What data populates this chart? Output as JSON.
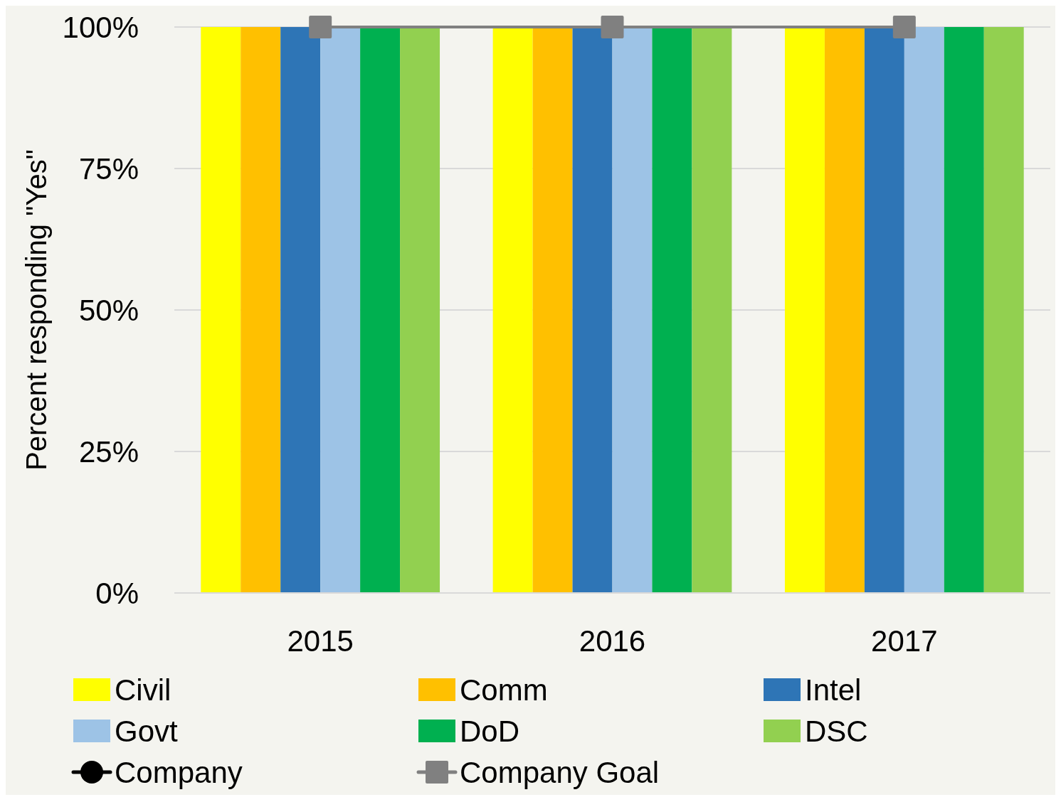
{
  "chart_data": {
    "type": "bar",
    "ylabel": "Percent responding \"Yes\"",
    "categories": [
      "2015",
      "2016",
      "2017"
    ],
    "series": [
      {
        "name": "Civil",
        "color": "#ffff00",
        "values": [
          100,
          100,
          100
        ]
      },
      {
        "name": "Comm",
        "color": "#ffc000",
        "values": [
          100,
          100,
          100
        ]
      },
      {
        "name": "Intel",
        "color": "#2e75b6",
        "values": [
          100,
          100,
          100
        ]
      },
      {
        "name": "Govt",
        "color": "#9dc3e6",
        "values": [
          100,
          100,
          100
        ]
      },
      {
        "name": "DoD",
        "color": "#00b050",
        "values": [
          100,
          100,
          100
        ]
      },
      {
        "name": "DSC",
        "color": "#92d050",
        "values": [
          100,
          100,
          100
        ]
      },
      {
        "name": "Company",
        "type": "line",
        "color": "#000000",
        "marker": "circle",
        "values": [
          null,
          null,
          null
        ]
      },
      {
        "name": "Company Goal",
        "type": "line",
        "color": "#808080",
        "marker": "square",
        "values": [
          100,
          100,
          100
        ]
      }
    ],
    "ylim": [
      0,
      100
    ],
    "yticks": [
      {
        "value": 0,
        "label": "0%"
      },
      {
        "value": 25,
        "label": "25%"
      },
      {
        "value": 50,
        "label": "50%"
      },
      {
        "value": 75,
        "label": "75%"
      },
      {
        "value": 100,
        "label": "100%"
      }
    ],
    "grid": "y",
    "legend": "bottom"
  }
}
